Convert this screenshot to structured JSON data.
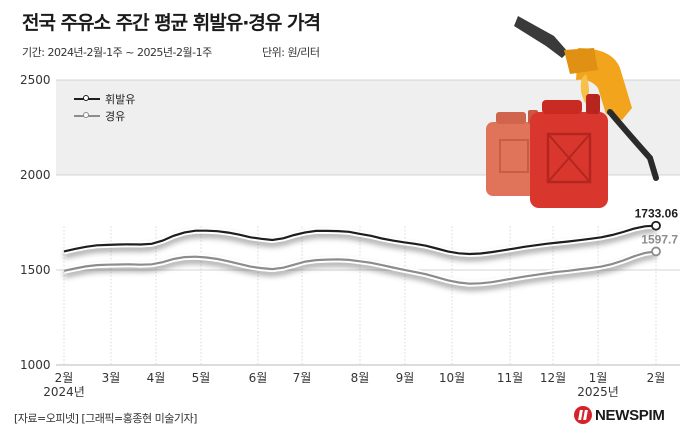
{
  "title": "전국 주유소 주간 평균 휘발유·경유 가격",
  "period": "기간: 2024년-2월-1주 ~ 2025년-2월-1주",
  "unit": "단위: 원/리터",
  "source": "[자료=오피넷] [그래픽=홍종현 미술기자]",
  "logo": "NEWSPIM",
  "illustration": "fuel-nozzle-and-jerry-cans",
  "colors": {
    "gasoline": "#1e1e1e",
    "diesel": "#8c8c8c",
    "band": "#efefef",
    "brand": "#d4232b",
    "can_front": "#d9362e",
    "can_back": "#e0745a",
    "nozzle": "#f2a41c"
  },
  "chart_data": {
    "type": "line",
    "title": "전국 주유소 주간 평균 휘발유·경유 가격",
    "xlabel": "",
    "ylabel": "",
    "ylim": [
      1000,
      2500
    ],
    "yticks": [
      "2500",
      "2000",
      "1500",
      "1000"
    ],
    "xticks": [
      "2월",
      "3월",
      "4월",
      "5월",
      "6월",
      "7월",
      "8월",
      "9월",
      "10월",
      "11월",
      "12월",
      "1월",
      "2월"
    ],
    "year_labels": [
      "2024년",
      "2025년"
    ],
    "grid": false,
    "legend": "top-left",
    "series": [
      {
        "name": "휘발유",
        "end_label": "1733.06",
        "values": [
          1598,
          1611,
          1622,
          1630,
          1632,
          1634,
          1635,
          1634,
          1638,
          1655,
          1680,
          1698,
          1707,
          1707,
          1704,
          1697,
          1686,
          1672,
          1664,
          1658,
          1667,
          1684,
          1698,
          1706,
          1706,
          1705,
          1701,
          1690,
          1680,
          1666,
          1655,
          1646,
          1638,
          1628,
          1613,
          1598,
          1588,
          1584,
          1587,
          1594,
          1603,
          1612,
          1622,
          1630,
          1638,
          1644,
          1650,
          1657,
          1664,
          1672,
          1684,
          1700,
          1718,
          1730,
          1733.06
        ]
      },
      {
        "name": "경유",
        "end_label": "1597.7",
        "values": [
          1496,
          1508,
          1519,
          1526,
          1528,
          1529,
          1530,
          1528,
          1530,
          1541,
          1558,
          1568,
          1570,
          1566,
          1558,
          1546,
          1532,
          1518,
          1510,
          1505,
          1512,
          1528,
          1544,
          1552,
          1555,
          1556,
          1553,
          1546,
          1538,
          1526,
          1513,
          1501,
          1490,
          1478,
          1462,
          1446,
          1434,
          1428,
          1430,
          1436,
          1446,
          1456,
          1465,
          1474,
          1482,
          1490,
          1496,
          1503,
          1510,
          1518,
          1531,
          1550,
          1572,
          1590,
          1597.7
        ]
      }
    ]
  }
}
